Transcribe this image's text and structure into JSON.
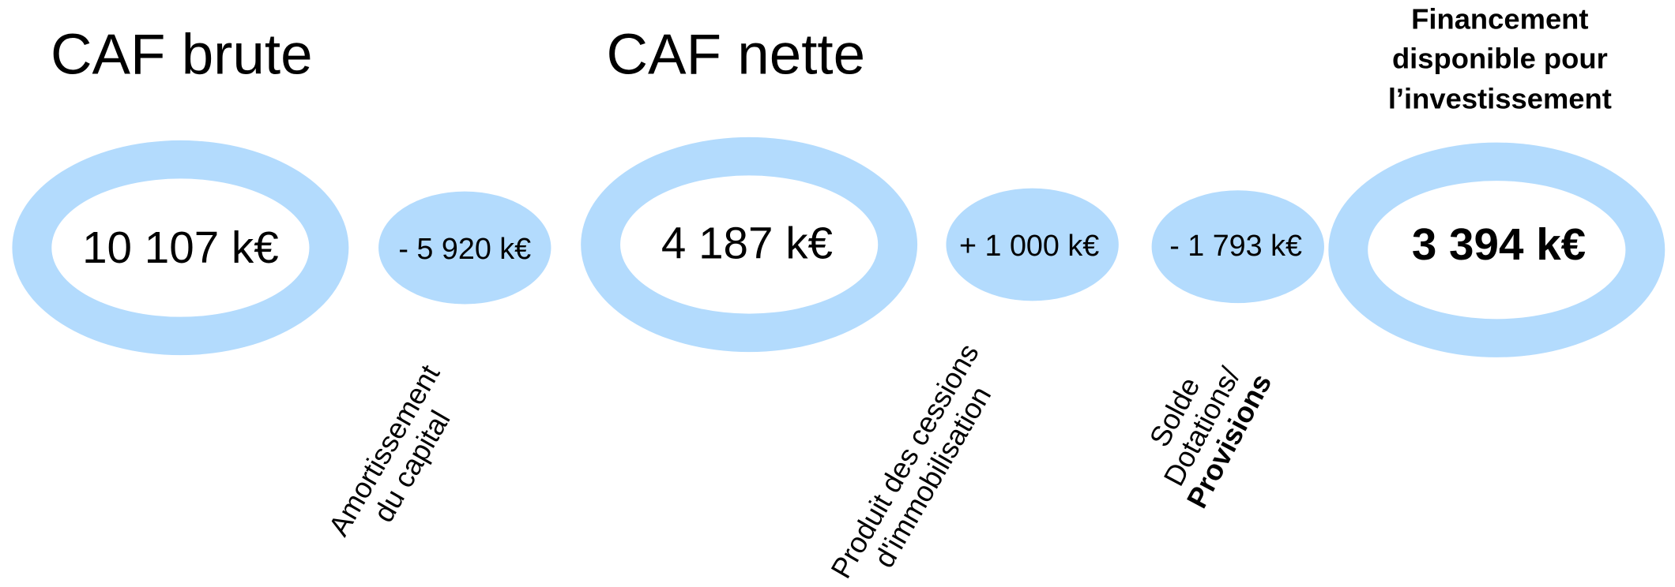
{
  "nodes": [
    {
      "title": "CAF brute",
      "value": "10 107 k€"
    },
    {
      "value": "- 5 920 k€",
      "label": [
        "Amortissement",
        "du capital"
      ]
    },
    {
      "title": "CAF nette",
      "value": "4 187 k€"
    },
    {
      "value": "+ 1 000 k€",
      "label": [
        "Produit des cessions",
        "d'immobilisation"
      ]
    },
    {
      "value": "- 1 793 k€",
      "label": [
        "Solde",
        "Dotations/",
        "Provisions"
      ]
    },
    {
      "title": [
        "Financement",
        "disponible pour",
        "l’investissement"
      ],
      "value": "3 394 k€"
    }
  ]
}
